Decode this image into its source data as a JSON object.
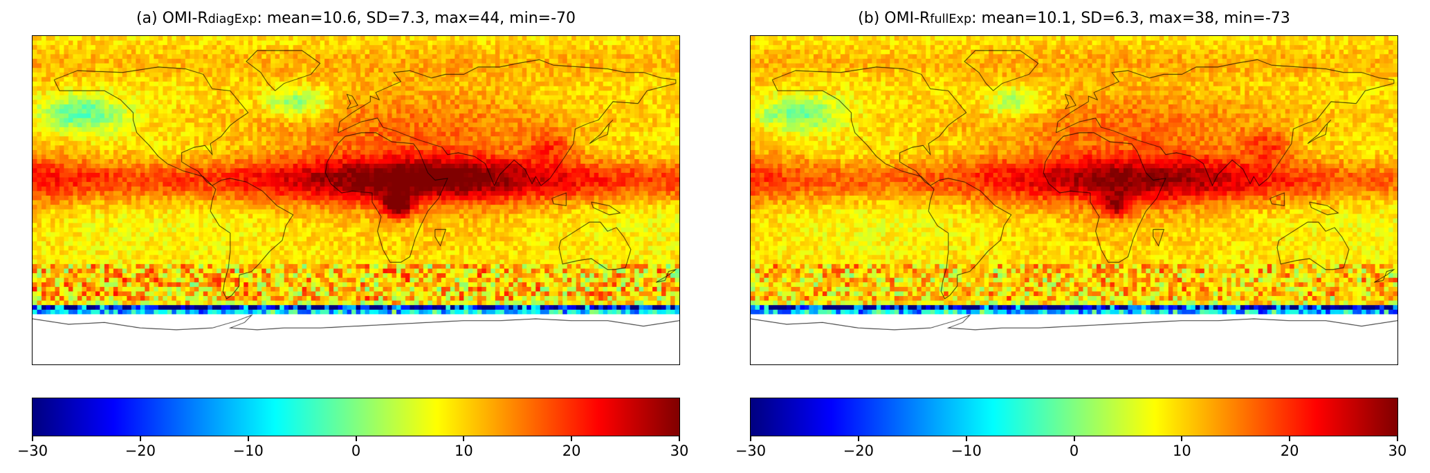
{
  "chart_data": {
    "type": "heatmap",
    "subtype": "global map, equirectangular projection",
    "colormap": "jet",
    "colorbar": {
      "min": -30,
      "max": 30,
      "ticks": [
        -30,
        -20,
        -10,
        0,
        10,
        20,
        30
      ],
      "tick_labels": [
        "−30",
        "−20",
        "−10",
        "0",
        "10",
        "20",
        "30"
      ]
    },
    "panels": [
      {
        "id": "a",
        "title_prefix": "(a) OMI-R",
        "title_sub": "diagExp",
        "title_suffix": ": mean=10.6, SD=7.3, max=44, min=-70",
        "stats": {
          "mean": 10.6,
          "sd": 7.3,
          "max": 44,
          "min": -70
        }
      },
      {
        "id": "b",
        "title_prefix": "(b) OMI-R",
        "title_sub": "fullExp",
        "title_suffix": ": mean=10.1, SD=6.3, max=38, min=-73",
        "stats": {
          "mean": 10.1,
          "sd": 6.3,
          "max": 38,
          "min": -73
        }
      }
    ]
  }
}
